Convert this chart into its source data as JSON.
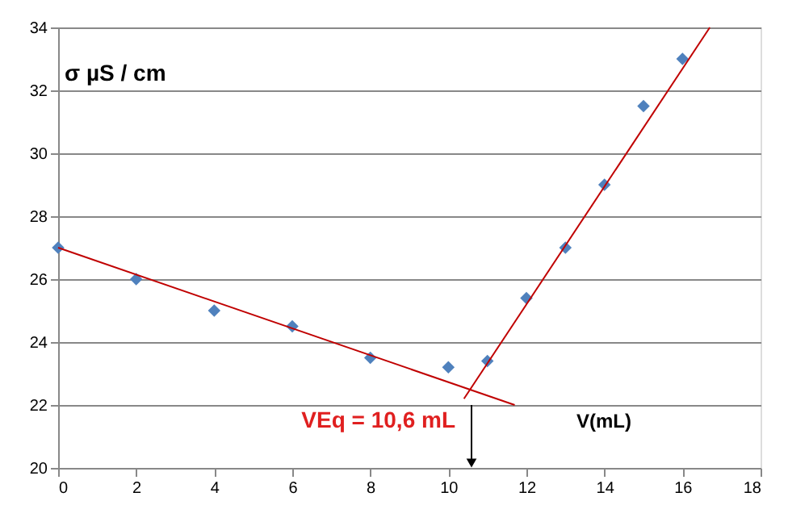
{
  "chart_data": {
    "type": "scatter",
    "ylabel": "σ µS / cm",
    "xlabel": "V(mL)",
    "xlim": [
      0,
      18
    ],
    "xticks": [
      0,
      2,
      4,
      6,
      8,
      10,
      12,
      14,
      16,
      18
    ],
    "ylim": [
      20,
      34
    ],
    "yticks": [
      20,
      22,
      24,
      26,
      28,
      30,
      32,
      34
    ],
    "grid": "y",
    "series": [
      {
        "marker": "diamond",
        "color": "#4f81bd",
        "x": [
          0,
          2,
          4,
          6,
          8,
          10,
          11,
          12,
          13,
          14,
          15,
          16
        ],
        "values": [
          27,
          26,
          25,
          24.5,
          23.5,
          23.2,
          23.4,
          25.4,
          27,
          29,
          31.5,
          33
        ]
      },
      {
        "type": "line",
        "color": "#c00000",
        "x": [
          0,
          11.7
        ],
        "values": [
          27,
          22
        ]
      },
      {
        "type": "line",
        "color": "#c00000",
        "x": [
          10.4,
          16.7
        ],
        "values": [
          22.2,
          34
        ]
      }
    ],
    "annotations": [
      "VEq = 10,6 mL"
    ]
  }
}
